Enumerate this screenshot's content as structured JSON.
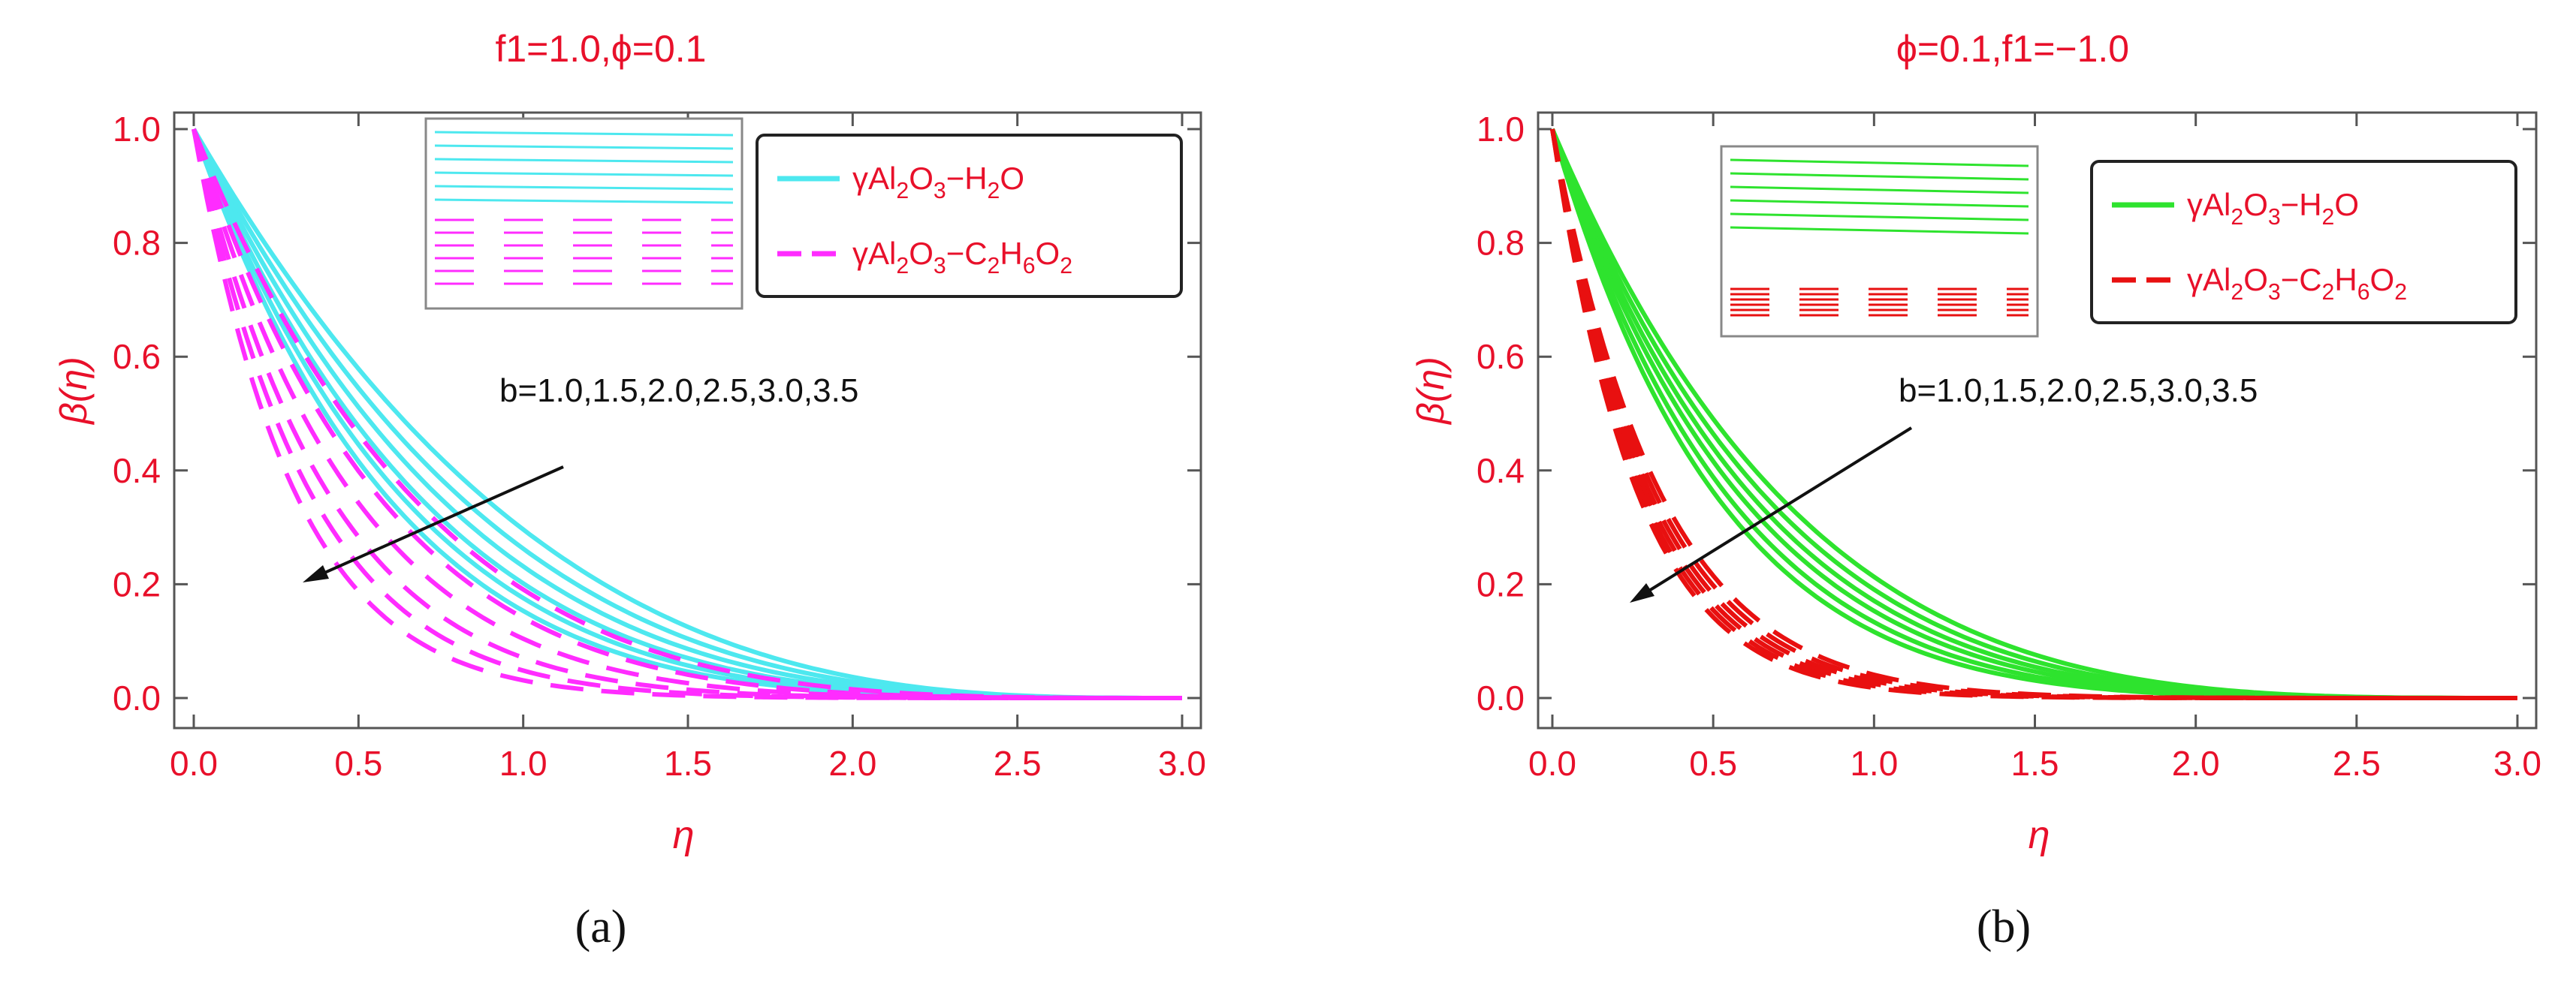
{
  "figure": {
    "panel_labels": [
      "(a)",
      "(b)"
    ]
  },
  "chart_data": [
    {
      "type": "line",
      "title": "f1=1.0,ϕ=0.1",
      "xlabel": "η",
      "ylabel": "β(η)",
      "xlim": [
        0,
        3
      ],
      "ylim": [
        0,
        1
      ],
      "xticks": [
        "0.0",
        "0.5",
        "1.0",
        "1.5",
        "2.0",
        "2.5",
        "3.0"
      ],
      "yticks": [
        "0.0",
        "0.2",
        "0.4",
        "0.6",
        "0.8",
        "1.0"
      ],
      "annotation": "b=1.0,1.5,2.0,2.5,3.0,3.5",
      "b_values": [
        1.0,
        1.5,
        2.0,
        2.5,
        3.0,
        3.5
      ],
      "series": [
        {
          "name": "γAl2O3−H2O",
          "style": "solid",
          "color": "#4de8ef",
          "decay_rates": [
            2.0,
            2.22,
            2.45,
            2.7,
            2.95,
            3.2
          ]
        },
        {
          "name": "γAl2O3−C2H6O2",
          "style": "dashed",
          "color": "#ff2cff",
          "decay_rates": [
            2.8,
            3.35,
            3.9,
            4.6,
            5.3,
            6.1
          ]
        }
      ],
      "legend": [
        {
          "prefix": "γAl",
          "s1": "2",
          "mid": "O",
          "s2": "3",
          "rest": "−H",
          "s3": "2",
          "end": "O"
        },
        {
          "prefix": "γAl",
          "s1": "2",
          "mid": "O",
          "s2": "3",
          "rest": "−C",
          "s3": "2",
          "mid2": "H",
          "s4": "6",
          "mid3": "O",
          "s5": "2"
        }
      ],
      "colors": {
        "label": "#e8102a",
        "solid": "#4de8ef",
        "dashed": "#ff2cff"
      }
    },
    {
      "type": "line",
      "title": "ϕ=0.1,f1=−1.0",
      "xlabel": "η",
      "ylabel": "β(η)",
      "xlim": [
        0,
        3
      ],
      "ylim": [
        0,
        1
      ],
      "xticks": [
        "0.0",
        "0.5",
        "1.0",
        "1.5",
        "2.0",
        "2.5",
        "3.0"
      ],
      "yticks": [
        "0.0",
        "0.2",
        "0.4",
        "0.6",
        "0.8",
        "1.0"
      ],
      "annotation": "b=1.0,1.5,2.0,2.5,3.0,3.5",
      "b_values": [
        1.0,
        1.5,
        2.0,
        2.5,
        3.0,
        3.5
      ],
      "series": [
        {
          "name": "γAl2O3−H2O",
          "style": "solid",
          "color": "#2ee32e",
          "decay_rates": [
            2.6,
            2.8,
            3.0,
            3.2,
            3.45,
            3.7
          ]
        },
        {
          "name": "γAl2O3−C2H6O2",
          "style": "dashed",
          "color": "#e81010",
          "decay_rates": [
            5.6,
            5.9,
            6.2,
            6.5,
            6.8,
            7.1
          ]
        }
      ],
      "legend": [
        {
          "prefix": "γAl",
          "s1": "2",
          "mid": "O",
          "s2": "3",
          "rest": "−H",
          "s3": "2",
          "end": "O"
        },
        {
          "prefix": "γAl",
          "s1": "2",
          "mid": "O",
          "s2": "3",
          "rest": "−C",
          "s3": "2",
          "mid2": "H",
          "s4": "6",
          "mid3": "O",
          "s5": "2"
        }
      ],
      "colors": {
        "label": "#e8102a",
        "solid": "#2ee32e",
        "dashed": "#e81010"
      }
    }
  ]
}
